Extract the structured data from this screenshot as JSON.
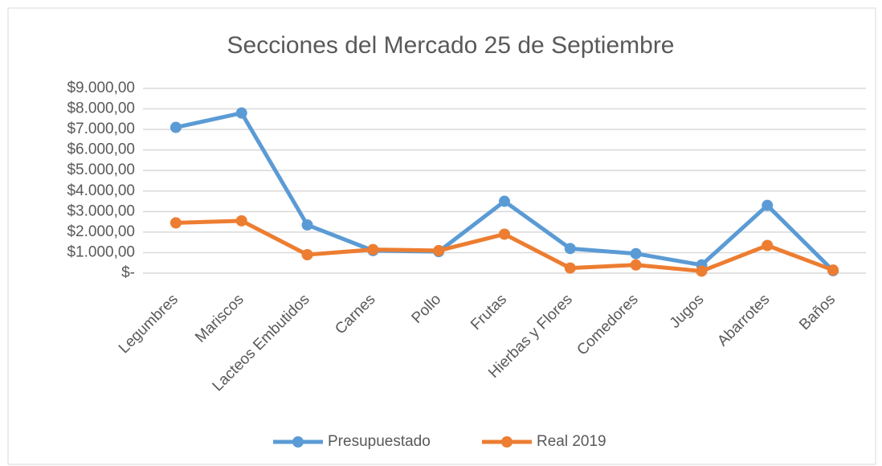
{
  "chart_data": {
    "type": "line",
    "title": "Secciones del Mercado 25 de Septiembre",
    "categories": [
      "Legumbres",
      "Mariscos",
      "Lacteos Embutidos",
      "Carnes",
      "Pollo",
      "Frutas",
      "Hierbas y Flores",
      "Comedores",
      "Jugos",
      "Abarrotes",
      "Baños"
    ],
    "series": [
      {
        "name": "Presupuestado",
        "color": "#5b9bd5",
        "values": [
          7100,
          7800,
          2350,
          1100,
          1050,
          3500,
          1200,
          950,
          400,
          3300,
          120
        ]
      },
      {
        "name": "Real 2019",
        "color": "#ed7d31",
        "values": [
          2450,
          2550,
          900,
          1150,
          1100,
          1900,
          250,
          400,
          100,
          1350,
          150
        ]
      }
    ],
    "ylim": [
      0,
      9000
    ],
    "yticks": [
      {
        "value": 0,
        "label": "$-"
      },
      {
        "value": 1000,
        "label": "$1.000,00"
      },
      {
        "value": 2000,
        "label": "$2.000,00"
      },
      {
        "value": 3000,
        "label": "$3.000,00"
      },
      {
        "value": 4000,
        "label": "$4.000,00"
      },
      {
        "value": 5000,
        "label": "$5.000,00"
      },
      {
        "value": 6000,
        "label": "$6.000,00"
      },
      {
        "value": 7000,
        "label": "$7.000,00"
      },
      {
        "value": 8000,
        "label": "$8.000,00"
      },
      {
        "value": 9000,
        "label": "$9.000,00"
      }
    ],
    "grid": true,
    "legend": "bottom"
  }
}
